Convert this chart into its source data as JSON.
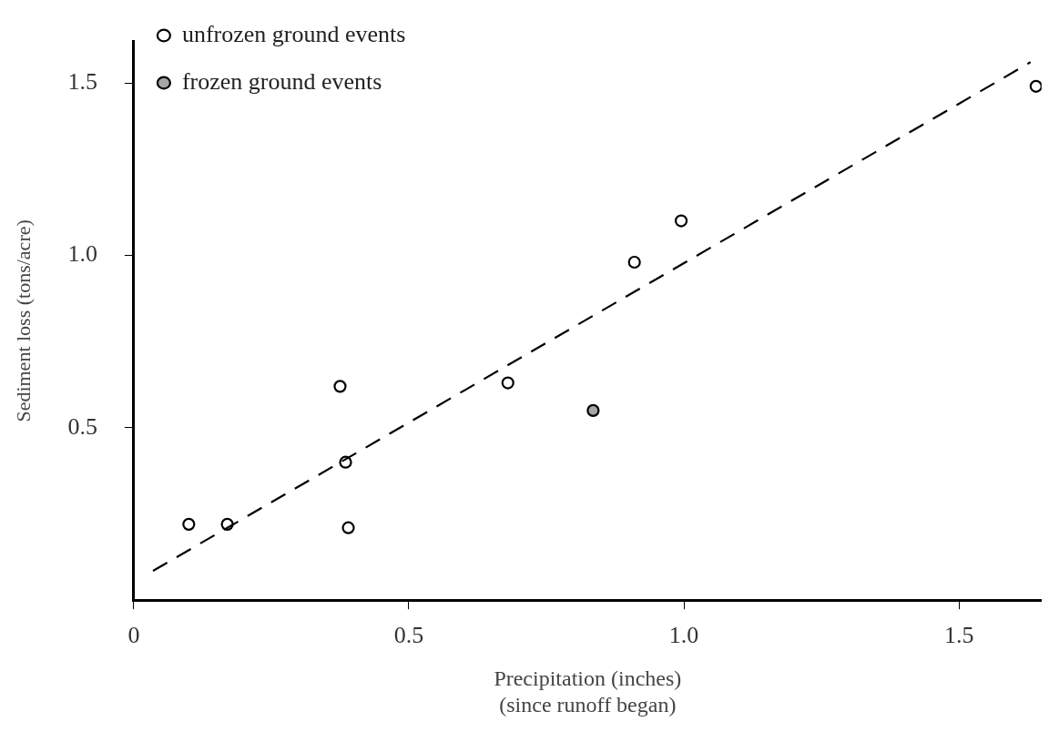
{
  "chart_data": {
    "type": "scatter",
    "xlabel": "Precipitation (inches)\n(since runoff began)",
    "ylabel": "Sediment loss (tons/acre)",
    "series": [
      {
        "name": "unfrozen ground events",
        "type": "scatter",
        "color": "#000000",
        "marker": "circle",
        "x": [
          0.1,
          0.17,
          0.375,
          0.385,
          0.39,
          0.68,
          0.91,
          0.995,
          1.64
        ],
        "values": [
          0.22,
          0.22,
          0.62,
          0.4,
          0.21,
          0.63,
          0.98,
          1.1,
          1.49
        ]
      },
      {
        "name": "frozen ground events",
        "type": "scatter",
        "color": "#000000",
        "marker": "circle",
        "x": [
          0.835
        ],
        "values": [
          0.55
        ]
      },
      {
        "type": "line",
        "color": "#000000",
        "line_style": "dashed",
        "marker": "none",
        "x": [
          0.035,
          1.63
        ],
        "values": [
          0.085,
          1.56
        ]
      }
    ],
    "xlim": [
      0,
      1.65
    ],
    "ylim": [
      0,
      1.62
    ],
    "xticks": [
      0,
      {
        "value": 0.5,
        "label": "0.5"
      },
      {
        "value": 1,
        "label": "1.0"
      },
      {
        "value": 1.5,
        "label": "1.5"
      }
    ],
    "yticks": [
      {
        "value": 0.5,
        "label": "0.5"
      },
      {
        "value": 1,
        "label": "1.0"
      },
      {
        "value": 1.5,
        "label": "1.5"
      }
    ],
    "grid": false,
    "legend": "top left"
  }
}
